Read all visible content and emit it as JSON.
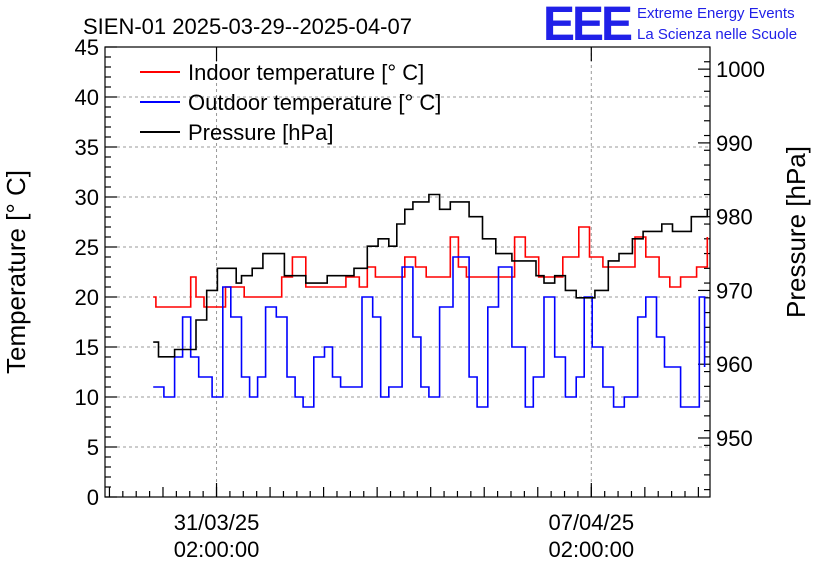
{
  "header": {
    "title": "SIEN-01 2025-03-29--2025-04-07",
    "logo": "EEE",
    "org_line1": "Extreme Energy Events",
    "org_line2": "La Scienza nelle Scuole"
  },
  "chart_data": {
    "type": "line",
    "title": "SIEN-01 2025-03-29--2025-04-07",
    "xlabel": "",
    "ylabel": "Temperature [° C]",
    "y2label": "Pressure [hPa]",
    "ylim": [
      0,
      45
    ],
    "y2lim": [
      942,
      1003
    ],
    "xlim": [
      0,
      11.3
    ],
    "x_unit": "days since 2025-03-29 00:00",
    "yticks": [
      "0",
      "5",
      "10",
      "15",
      "20",
      "25",
      "30",
      "35",
      "40",
      "45"
    ],
    "y2ticks": [
      "950",
      "960",
      "970",
      "980",
      "990",
      "1000"
    ],
    "xticks": [
      {
        "x": 2.083,
        "line1": "31/03/25",
        "line2": "02:00:00"
      },
      {
        "x": 9.083,
        "line1": "07/04/25",
        "line2": "02:00:00"
      }
    ],
    "grid": true,
    "legend_position": "top-left",
    "series": [
      {
        "name": "Indoor temperature [° C]",
        "color": "#ff0000",
        "axis": "left",
        "x": [
          0.9,
          0.95,
          1.0,
          1.4,
          1.6,
          1.7,
          1.8,
          1.85,
          1.95,
          2.0,
          2.25,
          2.45,
          2.6,
          2.75,
          3.0,
          3.3,
          3.5,
          3.75,
          4.05,
          4.5,
          4.75,
          4.9,
          5.05,
          5.2,
          5.6,
          5.8,
          6.0,
          6.2,
          6.45,
          6.6,
          6.75,
          6.9,
          7.15,
          7.4,
          7.65,
          7.85,
          8.1,
          8.3,
          8.55,
          8.85,
          9.05,
          9.3,
          9.65,
          9.9,
          10.1,
          10.35,
          10.55,
          10.75
        ],
        "y": [
          20,
          19,
          19,
          19,
          22,
          20,
          20,
          19,
          19,
          19,
          21,
          21,
          20,
          20,
          20,
          22,
          24,
          21,
          21,
          22,
          21,
          23,
          22,
          22,
          24,
          23,
          22,
          22,
          26,
          23,
          22,
          22,
          22,
          22,
          26,
          24,
          22,
          22,
          24,
          27,
          24,
          23,
          23,
          26,
          24,
          22,
          21,
          22
        ],
        "x_tail": [
          10.9,
          11.05,
          11.25
        ],
        "y_tail": [
          22,
          23,
          26
        ]
      },
      {
        "name": "Outdoor temperature [° C]",
        "color": "#0000ff",
        "axis": "left",
        "x": [
          0.9,
          1.0,
          1.1,
          1.3,
          1.45,
          1.6,
          1.75,
          1.9,
          2.0,
          2.2,
          2.35,
          2.55,
          2.7,
          2.85,
          3.0,
          3.2,
          3.4,
          3.55,
          3.7,
          3.9,
          4.1,
          4.25,
          4.4,
          4.55,
          4.8,
          5.0,
          5.15,
          5.3,
          5.55,
          5.75,
          5.9,
          6.05,
          6.25,
          6.5,
          6.8,
          6.95,
          7.15,
          7.35,
          7.6,
          7.85,
          8.0,
          8.2,
          8.4,
          8.6,
          8.8,
          8.95,
          9.1,
          9.3,
          9.5,
          9.7,
          9.95,
          10.1,
          10.3,
          10.45,
          10.6
        ],
        "y": [
          11,
          11,
          10,
          14,
          18,
          14,
          12,
          12,
          10,
          21,
          18,
          12,
          10,
          12,
          19,
          18,
          12,
          10,
          9,
          14,
          15,
          12,
          11,
          11,
          20,
          18,
          10,
          11,
          23,
          16,
          11,
          10,
          19,
          24,
          12,
          9,
          19,
          23,
          15,
          9,
          12,
          20,
          14,
          10,
          12,
          20,
          15,
          11,
          9,
          10,
          18,
          20,
          16,
          13,
          13
        ],
        "x_tail": [
          10.75,
          10.95,
          11.1,
          11.2
        ],
        "y_tail": [
          9,
          9,
          20,
          13
        ]
      },
      {
        "name": "Pressure [hPa]",
        "color": "#000000",
        "axis": "right",
        "x": [
          0.9,
          1.0,
          1.1,
          1.3,
          1.45,
          1.7,
          1.9,
          2.1,
          2.25,
          2.45,
          2.55,
          2.75,
          2.95,
          3.15,
          3.35,
          3.55,
          3.75,
          3.95,
          4.15,
          4.45,
          4.65,
          4.9,
          5.1,
          5.3,
          5.45,
          5.6,
          5.75,
          5.9,
          6.05,
          6.25,
          6.45,
          6.6,
          6.8,
          7.05,
          7.3,
          7.45,
          7.6,
          7.85,
          8.05,
          8.2,
          8.4,
          8.6,
          8.8,
          9.0,
          9.15,
          9.4,
          9.6,
          9.85,
          10.05,
          10.2,
          10.4,
          10.6,
          10.8,
          10.95,
          11.1,
          11.25
        ],
        "y": [
          963,
          961,
          961,
          962,
          962,
          966,
          970,
          973,
          973,
          971,
          972,
          973,
          975,
          975,
          972,
          972,
          971,
          971,
          972,
          972,
          973,
          976,
          977,
          976,
          979,
          981,
          982,
          982,
          983,
          981,
          982,
          982,
          980,
          977,
          975,
          975,
          974,
          974,
          972,
          971,
          972,
          970,
          969,
          969,
          970,
          974,
          975,
          977,
          978,
          978,
          979,
          978,
          978,
          980,
          980,
          981
        ]
      }
    ]
  }
}
